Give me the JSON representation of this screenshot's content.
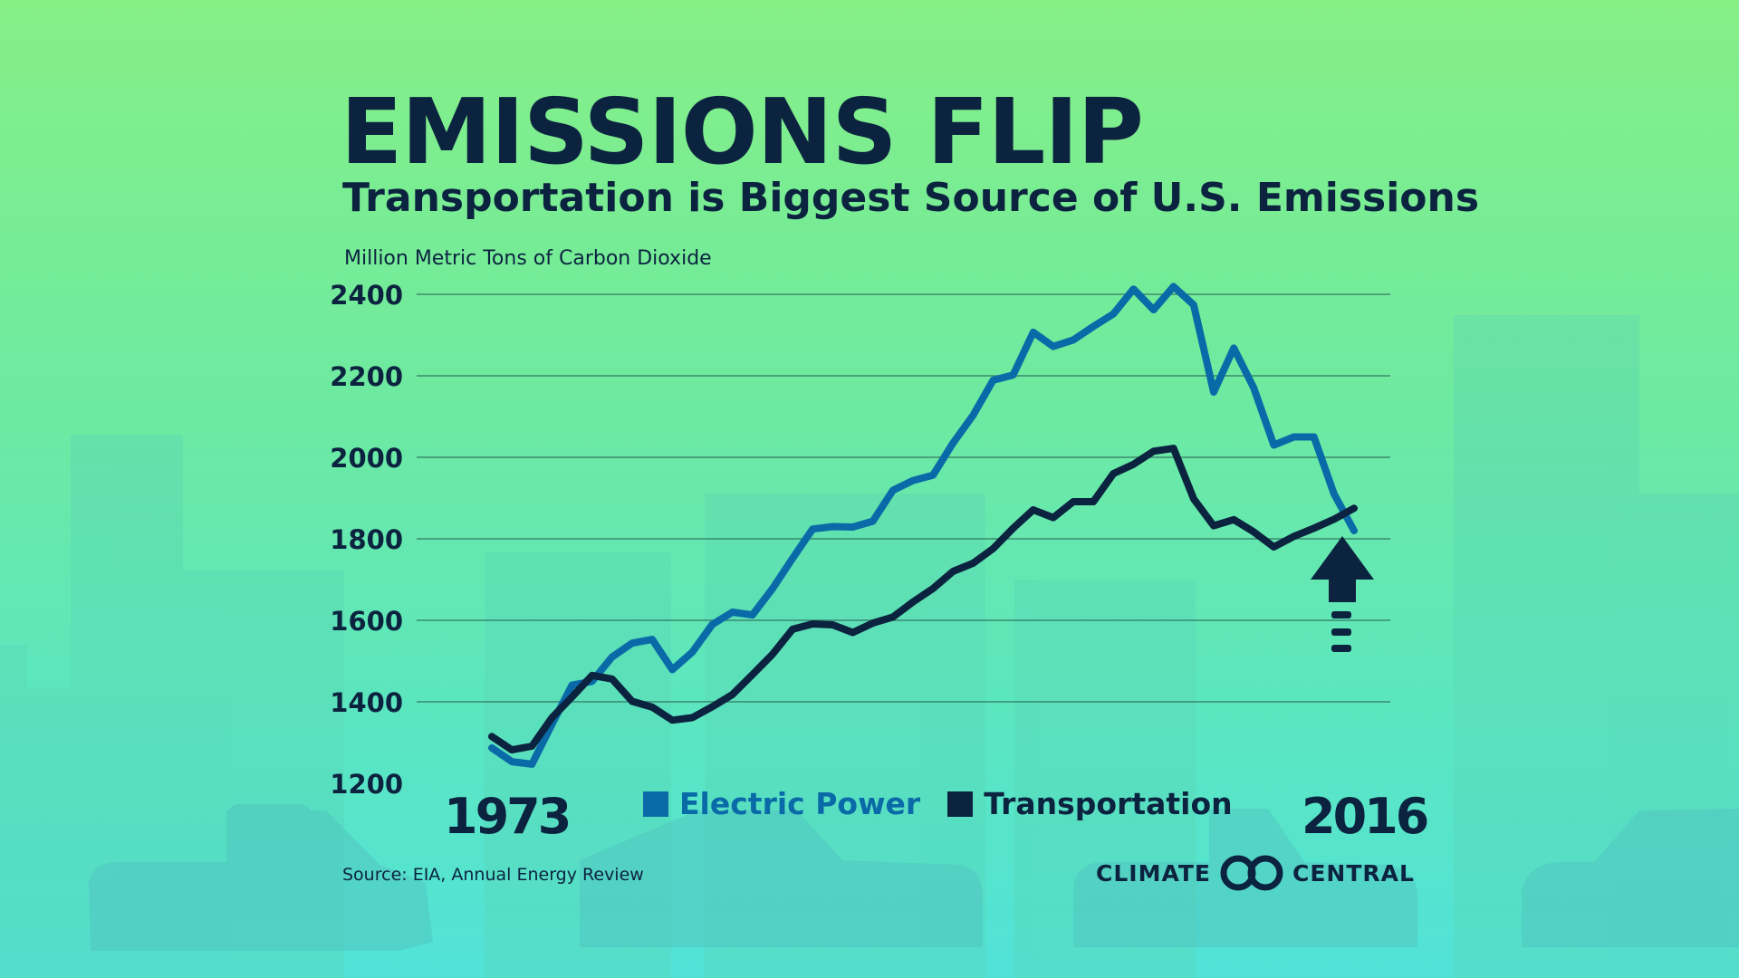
{
  "title": "EMISSIONS FLIP",
  "subtitle": "Transportation is Biggest Source of U.S. Emissions",
  "source": "Source: EIA, Annual Energy Review",
  "logo": {
    "left": "CLIMATE",
    "right": "CENTRAL"
  },
  "colors": {
    "electric_power": "#0a6aa8",
    "transportation": "#0c2340",
    "background_top": "#86ef86",
    "background_bottom": "#52e2d8"
  },
  "icons": [
    "up-arrow-icon",
    "climate-central-logo-icon"
  ],
  "chart_data": {
    "type": "line",
    "ylabel": "Million Metric Tons of Carbon Dioxide",
    "ylim": [
      1200,
      2400
    ],
    "yticks": [
      2400,
      2200,
      2000,
      1800,
      1600,
      1400,
      1200
    ],
    "x_labels": [
      "1973",
      "2016"
    ],
    "grid": true,
    "legend_position": "bottom-center",
    "x": [
      1973,
      1974,
      1975,
      1976,
      1977,
      1978,
      1979,
      1980,
      1981,
      1982,
      1983,
      1984,
      1985,
      1986,
      1987,
      1988,
      1989,
      1990,
      1991,
      1992,
      1993,
      1994,
      1995,
      1996,
      1997,
      1998,
      1999,
      2000,
      2001,
      2002,
      2003,
      2004,
      2005,
      2006,
      2007,
      2008,
      2009,
      2010,
      2011,
      2012,
      2013,
      2014,
      2015,
      2016
    ],
    "series": [
      {
        "name": "Electric Power",
        "color": "#0a6aa8",
        "values": [
          1287,
          1253,
          1247,
          1345,
          1441,
          1450,
          1510,
          1544,
          1553,
          1479,
          1522,
          1590,
          1620,
          1613,
          1678,
          1752,
          1824,
          1830,
          1829,
          1843,
          1919,
          1943,
          1956,
          2035,
          2103,
          2189,
          2202,
          2307,
          2272,
          2288,
          2321,
          2352,
          2413,
          2362,
          2419,
          2374,
          2160,
          2268,
          2170,
          2030,
          2050,
          2050,
          1910,
          1820
        ]
      },
      {
        "name": "Transportation",
        "color": "#0c2340",
        "values": [
          1315,
          1282,
          1291,
          1361,
          1412,
          1465,
          1456,
          1401,
          1387,
          1355,
          1361,
          1388,
          1418,
          1467,
          1517,
          1578,
          1591,
          1589,
          1570,
          1593,
          1608,
          1645,
          1678,
          1720,
          1740,
          1776,
          1826,
          1871,
          1852,
          1891,
          1891,
          1960,
          1983,
          2015,
          2022,
          1898,
          1832,
          1847,
          1817,
          1780,
          1806,
          1826,
          1848,
          1875
        ]
      }
    ]
  }
}
